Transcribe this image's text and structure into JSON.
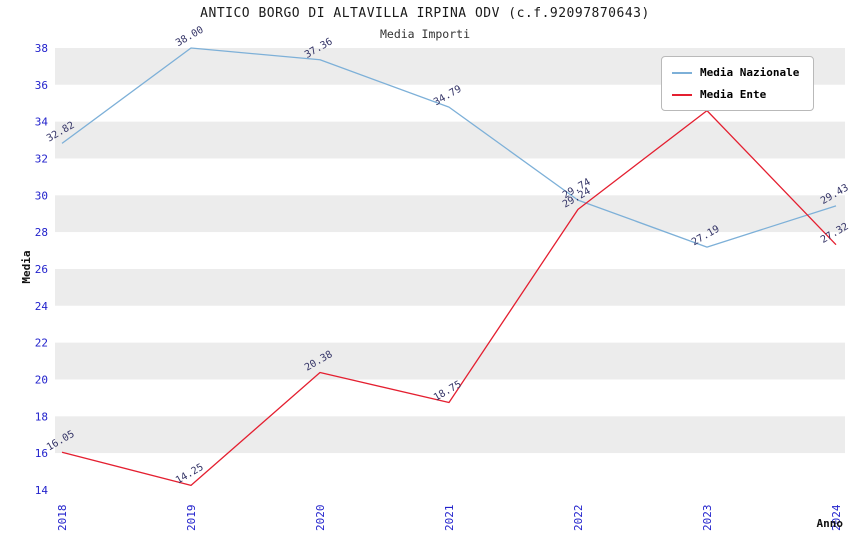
{
  "chart_data": {
    "type": "line",
    "title": "ANTICO BORGO DI ALTAVILLA IRPINA ODV (c.f.92097870643)",
    "subtitle": "Media Importi",
    "xlabel": "Anno",
    "ylabel": "Media",
    "x": [
      2018,
      2019,
      2020,
      2021,
      2022,
      2023,
      2024
    ],
    "ylim": [
      14,
      38
    ],
    "ytick_step": 2,
    "grid": "horizontal-bands",
    "band_colors": [
      "#ececec",
      "#ffffff"
    ],
    "tick_color": "#2222cc",
    "value_label_color": "#333366",
    "legend_position": "top-right",
    "series": [
      {
        "name": "Media Nazionale",
        "color": "#7db0d8",
        "values": [
          32.82,
          38.0,
          37.36,
          34.79,
          29.74,
          27.19,
          29.43
        ]
      },
      {
        "name": "Media Ente",
        "color": "#e41f30",
        "values": [
          16.05,
          14.25,
          20.38,
          18.75,
          29.24,
          34.6,
          27.32
        ],
        "hidden_labels": [
          5
        ]
      }
    ]
  }
}
